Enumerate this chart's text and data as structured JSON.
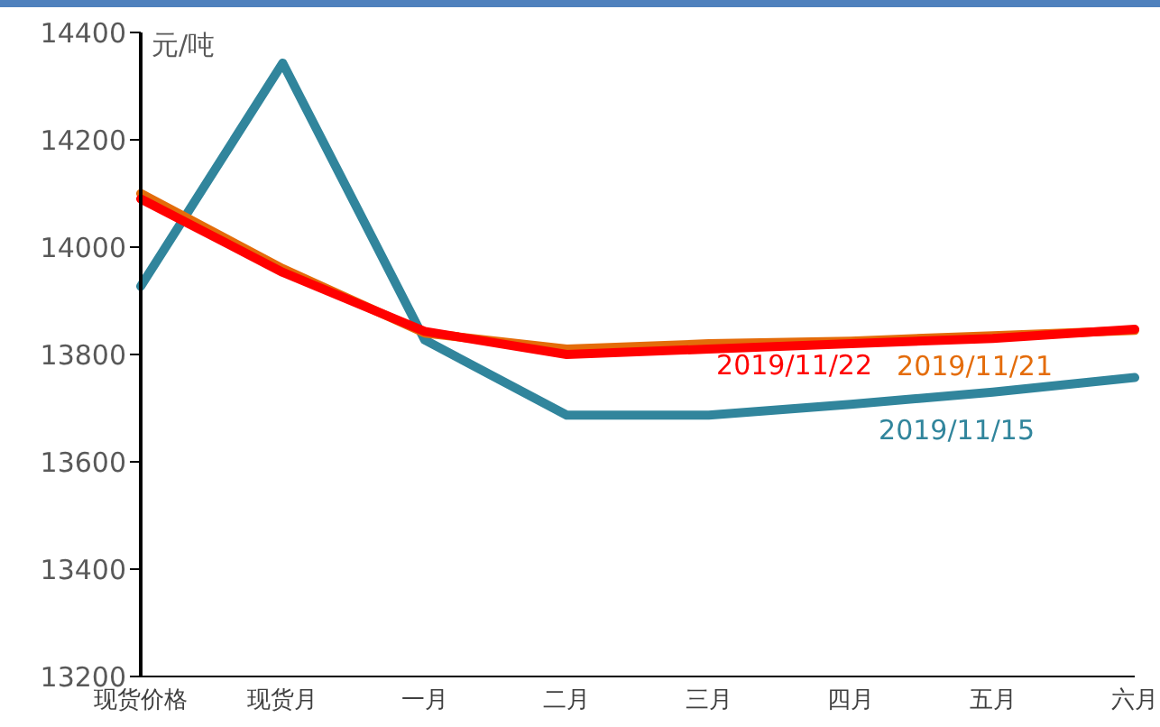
{
  "chart_data": {
    "type": "line",
    "ylabel": "元/吨",
    "categories": [
      "现货价格",
      "现货月",
      "一月",
      "二月",
      "三月",
      "四月",
      "五月",
      "六月"
    ],
    "series": [
      {
        "name": "2019/11/15",
        "color": "#31859c",
        "values": [
          13927,
          14343,
          13827,
          13687,
          13687,
          13707,
          13730,
          13757
        ]
      },
      {
        "name": "2019/11/21",
        "color": "#e46c0a",
        "values": [
          14100,
          13960,
          13840,
          13810,
          13820,
          13825,
          13835,
          13845
        ]
      },
      {
        "name": "2019/11/22",
        "color": "#ff0000",
        "values": [
          14090,
          13953,
          13843,
          13800,
          13810,
          13820,
          13830,
          13847
        ]
      }
    ],
    "ylim": [
      13200,
      14400
    ],
    "yticks": [
      13200,
      13400,
      13600,
      13800,
      14000,
      14200,
      14400
    ],
    "legend": false,
    "marker": "none",
    "line_style": "solid"
  }
}
